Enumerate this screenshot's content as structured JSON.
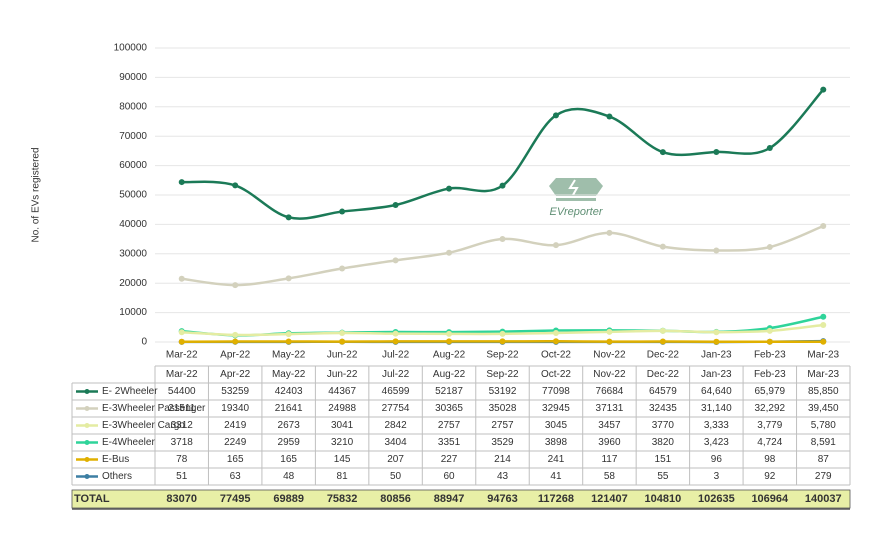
{
  "chart_data": {
    "type": "line",
    "y_label": "No. of EVs registered",
    "watermark": "EVreporter",
    "categories": [
      "Mar-22",
      "Apr-22",
      "May-22",
      "Jun-22",
      "Jul-22",
      "Aug-22",
      "Sep-22",
      "Oct-22",
      "Nov-22",
      "Dec-22",
      "Jan-23",
      "Feb-23",
      "Mar-23"
    ],
    "ylim": [
      0,
      100000
    ],
    "yticks": [
      0,
      10000,
      20000,
      30000,
      40000,
      50000,
      60000,
      70000,
      80000,
      90000,
      100000
    ],
    "series": [
      {
        "name": "E- 2Wheeler",
        "color": "#1b7a57",
        "values": [
          54400,
          53259,
          42403,
          44367,
          46599,
          52187,
          53192,
          77098,
          76684,
          64579,
          64640,
          65979,
          85850
        ],
        "value_labels": [
          "54400",
          "53259",
          "42403",
          "44367",
          "46599",
          "52187",
          "53192",
          "77098",
          "76684",
          "64579",
          "64,640",
          "65,979",
          "85,850"
        ]
      },
      {
        "name": "E-3Wheeler Passenger",
        "color": "#d3d1bd",
        "values": [
          21511,
          19340,
          21641,
          24988,
          27754,
          30365,
          35028,
          32945,
          37131,
          32435,
          31140,
          32292,
          39450
        ],
        "value_labels": [
          "21511",
          "19340",
          "21641",
          "24988",
          "27754",
          "30365",
          "35028",
          "32945",
          "37131",
          "32435",
          "31,140",
          "32,292",
          "39,450"
        ]
      },
      {
        "name": "E-3Wheeler Cargo",
        "color": "#e4eca2",
        "values": [
          3312,
          2419,
          2673,
          3041,
          2842,
          2757,
          2757,
          3045,
          3457,
          3770,
          3333,
          3779,
          5780
        ],
        "value_labels": [
          "3312",
          "2419",
          "2673",
          "3041",
          "2842",
          "2757",
          "2757",
          "3045",
          "3457",
          "3770",
          "3,333",
          "3,779",
          "5,780"
        ]
      },
      {
        "name": "E-4Wheeler",
        "color": "#2fd49a",
        "values": [
          3718,
          2249,
          2959,
          3210,
          3404,
          3351,
          3529,
          3898,
          3960,
          3820,
          3423,
          4724,
          8591
        ],
        "value_labels": [
          "3718",
          "2249",
          "2959",
          "3210",
          "3404",
          "3351",
          "3529",
          "3898",
          "3960",
          "3820",
          "3,423",
          "4,724",
          "8,591"
        ]
      },
      {
        "name": "E-Bus",
        "color": "#e0b000",
        "values": [
          78,
          165,
          165,
          145,
          207,
          227,
          214,
          241,
          117,
          151,
          96,
          98,
          87
        ],
        "value_labels": [
          "78",
          "165",
          "165",
          "145",
          "207",
          "227",
          "214",
          "241",
          "117",
          "151",
          "96",
          "98",
          "87"
        ]
      },
      {
        "name": "Others",
        "color": "#3d7fa3",
        "values": [
          51,
          63,
          48,
          81,
          50,
          60,
          43,
          41,
          58,
          55,
          3,
          92,
          279
        ],
        "value_labels": [
          "51",
          "63",
          "48",
          "81",
          "50",
          "60",
          "43",
          "41",
          "58",
          "55",
          "3",
          "92",
          "279"
        ]
      }
    ],
    "total": {
      "label": "TOTAL",
      "values": [
        83070,
        77495,
        69889,
        75832,
        80856,
        88947,
        94763,
        117268,
        121407,
        104810,
        102635,
        106964,
        140037
      ]
    }
  }
}
